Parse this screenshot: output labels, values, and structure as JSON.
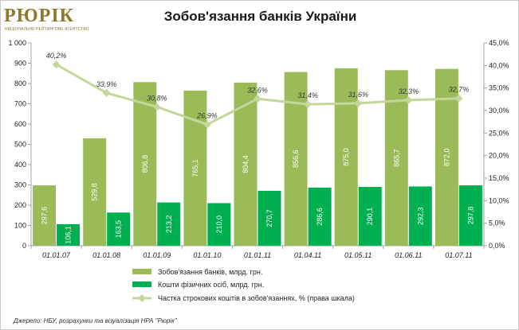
{
  "logo": {
    "text": "РЮРІК",
    "subtext": "НАЦІОНАЛЬНЕ РЕЙТИНГОВЕ АГЕНТСТВО"
  },
  "source": "Джерело: НБУ, розрахунки та візуалізація НРА \"Рюрік\"",
  "colors": {
    "total": "#9bbb59",
    "individuals": "#00b050",
    "share": "#c4d79b",
    "axis": "#a0a0a0"
  },
  "chart_data": {
    "type": "bar",
    "title": "Зобов'язання банків України",
    "categories": [
      "01.01.07",
      "01.01.08",
      "01.01.09",
      "01.01.10",
      "01.01.11",
      "01.04.11",
      "01.05.11",
      "01.06.11",
      "01.07.11"
    ],
    "series": [
      {
        "name": "Зобов'язання банків, млрд. грн.",
        "values": [
          297.6,
          529.8,
          806.8,
          765.1,
          804.4,
          856.6,
          875.0,
          865.7,
          872.0
        ],
        "labels": [
          "297,6",
          "529,8",
          "806,8",
          "765,1",
          "804,4",
          "856,6",
          "875,0",
          "865,7",
          "872,0"
        ]
      },
      {
        "name": "Кошти фізичних осіб, млрд. грн.",
        "values": [
          106.1,
          163.5,
          213.2,
          210.0,
          270.7,
          286.6,
          290.1,
          292.3,
          297.8
        ],
        "labels": [
          "106,1",
          "163,5",
          "213,2",
          "210,0",
          "270,7",
          "286,6",
          "290,1",
          "292,3",
          "297,8"
        ]
      },
      {
        "name": "Частка строкових коштів в зобов'язаннях, % (права шкала)",
        "type": "line",
        "axis": "right",
        "values": [
          40.2,
          33.9,
          30.8,
          26.9,
          32.6,
          31.4,
          31.6,
          32.3,
          32.7
        ],
        "labels": [
          "40,2%",
          "33,9%",
          "30,8%",
          "26,9%",
          "32,6%",
          "31,4%",
          "31,6%",
          "32,3%",
          "32,7%"
        ]
      }
    ],
    "ylim": [
      0,
      1000
    ],
    "yticks": [
      "0",
      "100",
      "200",
      "300",
      "400",
      "500",
      "600",
      "700",
      "800",
      "900",
      "1 000"
    ],
    "y2lim": [
      0,
      45
    ],
    "y2ticks": [
      "0,0%",
      "5,0%",
      "10,0%",
      "15,0%",
      "20,0%",
      "25,0%",
      "30,0%",
      "35,0%",
      "40,0%",
      "45,0%"
    ],
    "grid": false,
    "legend_position": "bottom"
  }
}
